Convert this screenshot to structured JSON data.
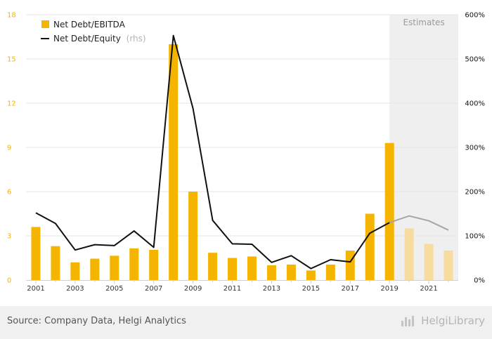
{
  "chart_data": {
    "type": "bar",
    "categories": [
      "2001",
      "2002",
      "2003",
      "2004",
      "2005",
      "2006",
      "2007",
      "2008",
      "2009",
      "2010",
      "2011",
      "2012",
      "2013",
      "2014",
      "2015",
      "2016",
      "2017",
      "2018",
      "2019",
      "2020",
      "2021",
      "2022"
    ],
    "x_tick_labels": [
      "2001",
      "2003",
      "2005",
      "2007",
      "2009",
      "2011",
      "2013",
      "2015",
      "2017",
      "2019",
      "2021"
    ],
    "series": [
      {
        "name": "Net Debt/EBITDA",
        "type": "bar",
        "axis": "left",
        "color": "#f5b400",
        "estimate_color": "#f7dca0",
        "values": [
          3.6,
          2.3,
          1.2,
          1.45,
          1.65,
          2.15,
          2.05,
          16.0,
          6.0,
          1.85,
          1.5,
          1.6,
          1.0,
          1.05,
          0.65,
          1.05,
          2.0,
          4.5,
          9.3,
          3.5,
          2.45,
          2.0
        ]
      },
      {
        "name": "Net Debt/Equity",
        "name_suffix": "(rhs)",
        "type": "line",
        "axis": "right",
        "color": "#111111",
        "estimate_color": "#a6a6a6",
        "values": [
          152,
          128,
          68,
          80,
          78,
          111,
          74,
          553,
          388,
          135,
          82,
          81,
          40,
          55,
          26,
          46,
          41,
          106,
          130,
          145,
          134,
          113
        ]
      }
    ],
    "estimate_start": "2020",
    "estimate_label": "Estimates",
    "y_left": {
      "min": 0,
      "max": 18,
      "ticks": [
        "0",
        "3",
        "6",
        "9",
        "12",
        "15",
        "18"
      ],
      "tick_color": "#f5b400"
    },
    "y_right": {
      "min": 0,
      "max": 600,
      "ticks": [
        "0%",
        "100%",
        "200%",
        "300%",
        "400%",
        "500%",
        "600%"
      ],
      "tick_color": "#111111"
    },
    "grid": true,
    "legend_position": "top-left"
  },
  "footer": {
    "source": "Source: Company Data, Helgi Analytics",
    "brand": "HelgiLibrary"
  }
}
